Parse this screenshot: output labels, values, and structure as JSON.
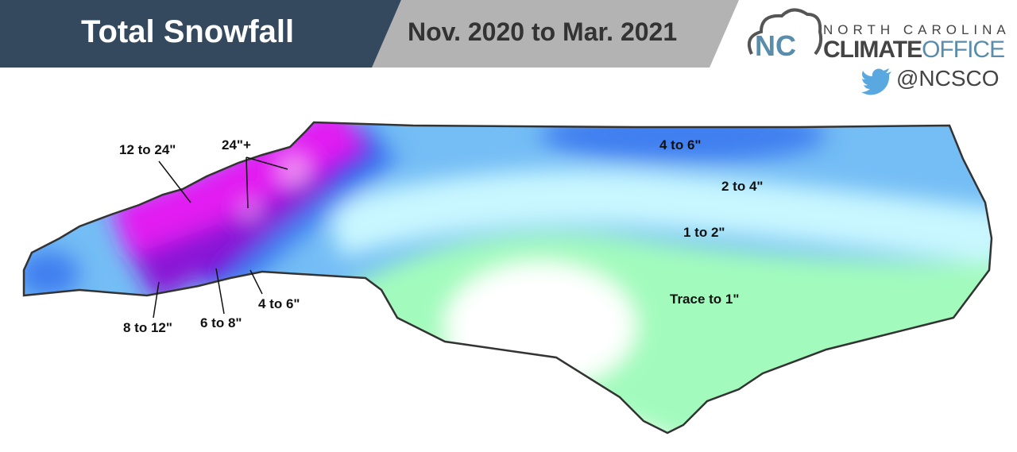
{
  "header": {
    "title": "Total Snowfall",
    "date_range": "Nov. 2020  to Mar. 2021"
  },
  "logo": {
    "line1": "NORTH CAROLINA",
    "line2a": "CLIMATE",
    "line2b": "OFFICE",
    "monogram": "NC",
    "social_icon": "twitter-bird-icon",
    "handle": "@NCSCO"
  },
  "map": {
    "region": "North Carolina",
    "colors": {
      "trace_to_1": "#a2fbbd",
      "1_to_2": "#c9f7ff",
      "2_to_4": "#74bdf5",
      "4_to_6": "#3f7ff0",
      "6_to_8": "#3a22e6",
      "8_to_12": "#8a12d6",
      "12_to_24": "#e21cf2",
      "24_plus": "#f59af5",
      "none": "#ffffff"
    },
    "labels": [
      "12 to 24\"",
      "24\"+",
      "4 to 6\"",
      "2 to 4\"",
      "1 to 2\"",
      "Trace to 1\"",
      "8 to 12\"",
      "6 to 8\"",
      "4 to 6\""
    ]
  }
}
